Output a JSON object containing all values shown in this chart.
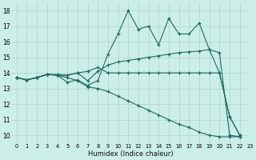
{
  "xlabel": "Humidex (Indice chaleur)",
  "bg_color": "#cceee8",
  "grid_color": "#b0d8d0",
  "line_color": "#1e6b62",
  "xlim": [
    -0.5,
    23
  ],
  "ylim": [
    9.5,
    18.5
  ],
  "xticks": [
    0,
    1,
    2,
    3,
    4,
    5,
    6,
    7,
    8,
    9,
    10,
    11,
    12,
    13,
    14,
    15,
    16,
    17,
    18,
    19,
    20,
    21,
    22,
    23
  ],
  "yticks": [
    10,
    11,
    12,
    13,
    14,
    15,
    16,
    17,
    18
  ],
  "series": [
    {
      "x": [
        0,
        1,
        2,
        3,
        4,
        5,
        6,
        7,
        8,
        9,
        10,
        11,
        12,
        13,
        14,
        15,
        16,
        17,
        18,
        19,
        20,
        21,
        22
      ],
      "y": [
        13.7,
        13.55,
        13.7,
        13.9,
        13.85,
        13.4,
        13.55,
        13.2,
        13.5,
        15.2,
        16.5,
        18.0,
        16.8,
        17.0,
        15.8,
        17.5,
        16.5,
        16.5,
        17.2,
        15.5,
        14.0,
        11.2,
        10.0
      ]
    },
    {
      "x": [
        0,
        1,
        2,
        3,
        4,
        5,
        6,
        7,
        8,
        9,
        10,
        11,
        12,
        13,
        14,
        15,
        16,
        17,
        18,
        19,
        20,
        21,
        22
      ],
      "y": [
        13.7,
        13.55,
        13.7,
        13.9,
        13.9,
        13.85,
        14.0,
        14.1,
        14.35,
        14.0,
        14.0,
        14.0,
        14.0,
        14.0,
        14.0,
        14.0,
        14.0,
        14.0,
        14.0,
        14.0,
        14.0,
        11.2,
        10.0
      ]
    },
    {
      "x": [
        0,
        1,
        2,
        3,
        4,
        5,
        6,
        7,
        8,
        9,
        10,
        11,
        12,
        13,
        14,
        15,
        16,
        17,
        18,
        19,
        20,
        21,
        22
      ],
      "y": [
        13.7,
        13.55,
        13.7,
        13.9,
        13.85,
        13.85,
        14.0,
        13.5,
        14.1,
        14.5,
        14.7,
        14.8,
        14.9,
        15.0,
        15.1,
        15.2,
        15.3,
        15.35,
        15.4,
        15.5,
        15.3,
        10.0,
        9.9
      ]
    },
    {
      "x": [
        0,
        1,
        2,
        3,
        4,
        5,
        6,
        7,
        8,
        9,
        10,
        11,
        12,
        13,
        14,
        15,
        16,
        17,
        18,
        19,
        20,
        21,
        22
      ],
      "y": [
        13.7,
        13.55,
        13.7,
        13.9,
        13.85,
        13.7,
        13.5,
        13.1,
        13.0,
        12.8,
        12.5,
        12.2,
        11.9,
        11.6,
        11.3,
        11.0,
        10.7,
        10.5,
        10.2,
        10.0,
        9.9,
        9.9,
        9.9
      ]
    }
  ]
}
